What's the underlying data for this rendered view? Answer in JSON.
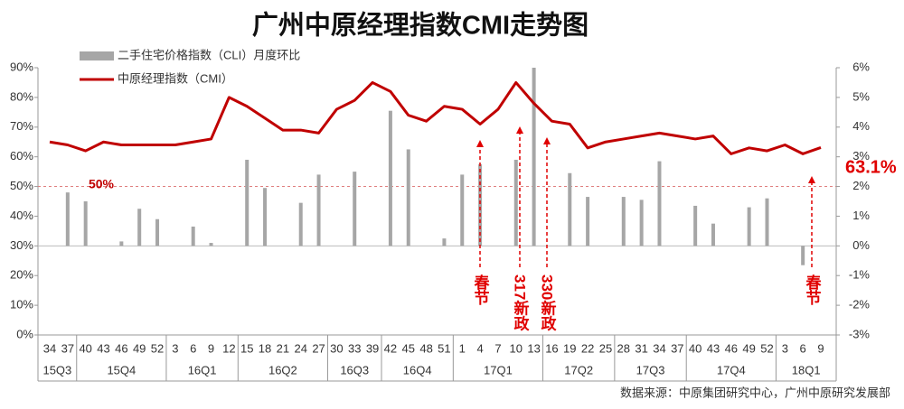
{
  "chart_data": {
    "type": "bar_line",
    "title": "广州中原经理指数CMI走势图",
    "categories": [
      "34",
      "37",
      "40",
      "43",
      "46",
      "49",
      "52",
      "3",
      "6",
      "9",
      "12",
      "15",
      "18",
      "21",
      "24",
      "27",
      "30",
      "33",
      "39",
      "42",
      "45",
      "48",
      "51",
      "1",
      "4",
      "7",
      "10",
      "13",
      "16",
      "19",
      "22",
      "25",
      "28",
      "31",
      "34",
      "37",
      "40",
      "43",
      "46",
      "49",
      "52",
      "3",
      "6",
      "9"
    ],
    "quarters": [
      "15Q3",
      "15Q3",
      "15Q4",
      "15Q4",
      "15Q4",
      "15Q4",
      "15Q4",
      "16Q1",
      "16Q1",
      "16Q1",
      "16Q1",
      "16Q2",
      "16Q2",
      "16Q2",
      "16Q2",
      "16Q2",
      "16Q3",
      "16Q3",
      "16Q3",
      "16Q4",
      "16Q4",
      "16Q4",
      "16Q4",
      "17Q1",
      "17Q1",
      "17Q1",
      "17Q1",
      "17Q1",
      "17Q2",
      "17Q2",
      "17Q2",
      "17Q2",
      "17Q3",
      "17Q3",
      "17Q3",
      "17Q3",
      "17Q4",
      "17Q4",
      "17Q4",
      "17Q4",
      "17Q4",
      "18Q1",
      "18Q1",
      "18Q1"
    ],
    "series": [
      {
        "name": "二手住宅价格指数（CLI）月度环比",
        "color": "#a6a6a6",
        "axis": "y2",
        "kind": "bar",
        "values": [
          null,
          1.8,
          1.5,
          null,
          0.15,
          1.25,
          0.9,
          null,
          0.65,
          0.1,
          null,
          2.9,
          1.95,
          null,
          1.45,
          2.4,
          null,
          2.5,
          null,
          4.55,
          3.25,
          null,
          0.25,
          2.4,
          2.75,
          null,
          2.9,
          6.0,
          null,
          2.45,
          1.65,
          null,
          1.65,
          1.55,
          2.85,
          null,
          1.35,
          0.75,
          null,
          1.3,
          1.6,
          null,
          -0.65,
          null
        ]
      },
      {
        "name": "中原经理指数（CMI）",
        "color": "#c00000",
        "kind": "line",
        "values": [
          65,
          64,
          62,
          65,
          64,
          64,
          64,
          64,
          65,
          66,
          80,
          77,
          73,
          69,
          69,
          68,
          76,
          79,
          85,
          82,
          74,
          72,
          77,
          76,
          71,
          76,
          85,
          78,
          72,
          71,
          63,
          65,
          66,
          67,
          68,
          67,
          66,
          67,
          61,
          63,
          62,
          64,
          61,
          63.1
        ],
        "value_labels": [
          null,
          null,
          null,
          null,
          null,
          null,
          null,
          null,
          null,
          null,
          null,
          null,
          null,
          null,
          null,
          null,
          null,
          null,
          null,
          null,
          null,
          null,
          null,
          null,
          null,
          null,
          null,
          null,
          null,
          null,
          null,
          null,
          null,
          null,
          null,
          null,
          null,
          null,
          null,
          null,
          null,
          null,
          null,
          "63.1%"
        ]
      }
    ],
    "ylim": [
      0,
      90
    ],
    "yticks": [
      {
        "value": 0,
        "label": "0%"
      },
      {
        "value": 10,
        "label": "10%"
      },
      {
        "value": 20,
        "label": "20%"
      },
      {
        "value": 30,
        "label": "30%"
      },
      {
        "value": 40,
        "label": "40%"
      },
      {
        "value": 50,
        "label": "50%"
      },
      {
        "value": 60,
        "label": "60%"
      },
      {
        "value": 70,
        "label": "70%"
      },
      {
        "value": 80,
        "label": "80%"
      },
      {
        "value": 90,
        "label": "90%"
      }
    ],
    "y2lim": [
      -3,
      6
    ],
    "y2ticks": [
      {
        "value": -3,
        "label": "-3%"
      },
      {
        "value": -2,
        "label": "-2%"
      },
      {
        "value": -1,
        "label": "-1%"
      },
      {
        "value": 0,
        "label": "0%"
      },
      {
        "value": 1,
        "label": "1%"
      },
      {
        "value": 2,
        "label": "2%"
      },
      {
        "value": 3,
        "label": "3%"
      },
      {
        "value": 4,
        "label": "4%"
      },
      {
        "value": 5,
        "label": "5%"
      },
      {
        "value": 6,
        "label": "6%"
      }
    ],
    "reference_line": {
      "value": 50,
      "label": "50%"
    },
    "annotations": [
      "春节",
      "317新政",
      "330新政",
      "春节"
    ],
    "source": "数据来源：中原集团研究中心，广州中原研究发展部"
  }
}
